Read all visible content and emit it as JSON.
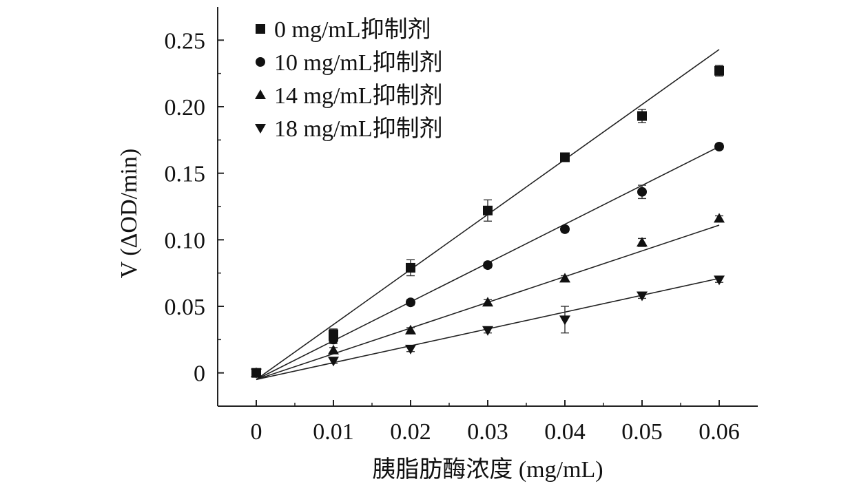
{
  "chart_data": {
    "type": "scatter",
    "title": "",
    "xlabel": "胰脂肪酶浓度 (mg/mL)",
    "ylabel": "V (ΔOD/min)",
    "xlim": [
      -0.005,
      0.065
    ],
    "ylim": [
      -0.025,
      0.275
    ],
    "x_ticks": [
      0,
      0.01,
      0.02,
      0.03,
      0.04,
      0.05,
      0.06
    ],
    "x_tick_labels": [
      "0",
      "0.01",
      "0.02",
      "0.03",
      "0.04",
      "0.05",
      "0.06"
    ],
    "y_ticks": [
      0,
      0.05,
      0.1,
      0.15,
      0.2,
      0.25
    ],
    "y_tick_labels": [
      "0",
      "0.05",
      "0.10",
      "0.15",
      "0.20",
      "0.25"
    ],
    "grid": false,
    "legend_position": "top-left",
    "series": [
      {
        "name": "0 mg/mL抑制剂",
        "marker": "square",
        "x": [
          0,
          0.01,
          0.02,
          0.03,
          0.04,
          0.05,
          0.06
        ],
        "y": [
          0.0,
          0.029,
          0.079,
          0.122,
          0.162,
          0.193,
          0.227
        ],
        "error": [
          0.003,
          0.004,
          0.006,
          0.008,
          0.002,
          0.005,
          0.004
        ],
        "fit": {
          "x": [
            0.0,
            0.06
          ],
          "y": [
            -0.005,
            0.243
          ]
        }
      },
      {
        "name": "10 mg/mL抑制剂",
        "marker": "circle",
        "x": [
          0,
          0.01,
          0.02,
          0.03,
          0.04,
          0.05,
          0.06
        ],
        "y": [
          0.0,
          0.025,
          0.053,
          0.081,
          0.108,
          0.136,
          0.17
        ],
        "error": [
          0.002,
          0.003,
          0.002,
          0.002,
          0.002,
          0.005,
          0.002
        ],
        "fit": {
          "x": [
            0.0,
            0.06
          ],
          "y": [
            -0.005,
            0.17
          ]
        }
      },
      {
        "name": "14 mg/mL抑制剂",
        "marker": "triangle-up",
        "x": [
          0,
          0.01,
          0.02,
          0.03,
          0.04,
          0.05,
          0.06
        ],
        "y": [
          0.0,
          0.017,
          0.032,
          0.053,
          0.071,
          0.098,
          0.116
        ],
        "error": [
          0.002,
          0.002,
          0.002,
          0.002,
          0.002,
          0.003,
          0.002
        ],
        "fit": {
          "x": [
            0.0,
            0.06
          ],
          "y": [
            -0.005,
            0.111
          ]
        }
      },
      {
        "name": "18 mg/mL抑制剂",
        "marker": "triangle-down",
        "x": [
          0,
          0.01,
          0.02,
          0.03,
          0.04,
          0.05,
          0.06
        ],
        "y": [
          0.0,
          0.009,
          0.018,
          0.032,
          0.04,
          0.058,
          0.07
        ],
        "error": [
          0.002,
          0.002,
          0.002,
          0.002,
          0.01,
          0.002,
          0.002
        ],
        "fit": {
          "x": [
            0.0,
            0.06
          ],
          "y": [
            -0.005,
            0.071
          ]
        }
      }
    ]
  }
}
